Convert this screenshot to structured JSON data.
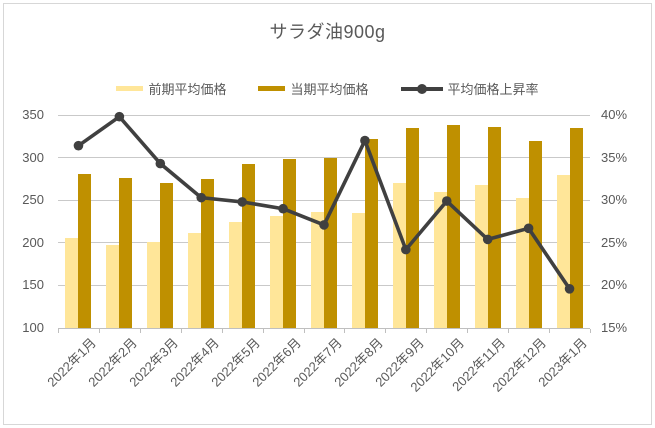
{
  "chart_data": {
    "type": "combo-bar-line",
    "title": "サラダ油900g",
    "categories": [
      "2022年1月",
      "2022年2月",
      "2022年3月",
      "2022年4月",
      "2022年5月",
      "2022年6月",
      "2022年7月",
      "2022年8月",
      "2022年9月",
      "2022年10月",
      "2022年11月",
      "2022年12月",
      "2023年1月"
    ],
    "series": [
      {
        "name": "前期平均価格",
        "type": "bar",
        "axis": "left",
        "color": "#FFE699",
        "values": [
          206,
          197,
          201,
          211,
          225,
          231,
          236,
          235,
          270,
          260,
          268,
          252,
          280
        ]
      },
      {
        "name": "当期平均価格",
        "type": "bar",
        "axis": "left",
        "color": "#BF9000",
        "values": [
          281,
          276,
          270,
          275,
          292,
          298,
          300,
          322,
          335,
          338,
          336,
          320,
          335
        ]
      },
      {
        "name": "平均価格上昇率",
        "type": "line",
        "axis": "right",
        "color": "#404040",
        "values_percent": [
          36.4,
          39.8,
          34.3,
          30.3,
          29.8,
          29.0,
          27.1,
          37.0,
          24.2,
          29.9,
          25.4,
          26.7,
          19.6
        ]
      }
    ],
    "left_axis": {
      "min": 100,
      "max": 350,
      "step": 50,
      "tick_labels": [
        "350",
        "300",
        "250",
        "200",
        "150",
        "100"
      ],
      "tick_values": [
        350,
        300,
        250,
        200,
        150,
        100
      ]
    },
    "right_axis": {
      "min": 15,
      "max": 40,
      "step": 5,
      "tick_labels": [
        "40%",
        "35%",
        "30%",
        "25%",
        "20%",
        "15%"
      ],
      "tick_values": [
        40,
        35,
        30,
        25,
        20,
        15
      ]
    },
    "legend_position": "top",
    "grid": true
  },
  "colors": {
    "prev_bar": "#FFE699",
    "curr_bar": "#BF9000",
    "line": "#404040",
    "gridline": "#C9C9C9",
    "axis": "#BFBFBF",
    "text": "#595959",
    "frame_border": "#D7D7D7",
    "background": "#FFFFFF"
  }
}
